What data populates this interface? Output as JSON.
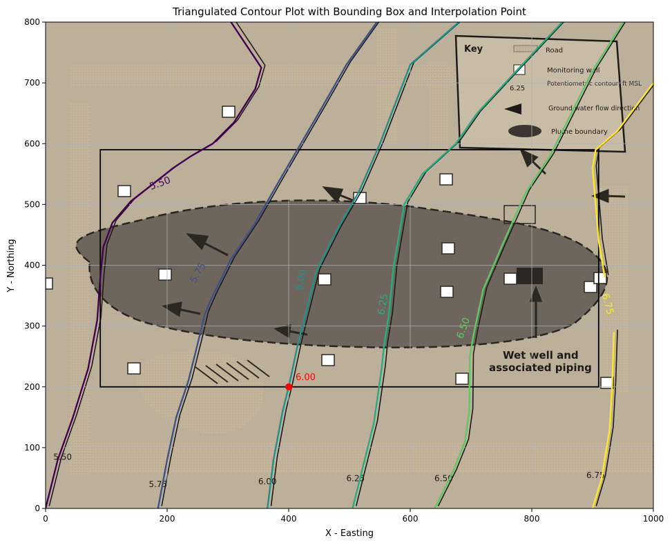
{
  "chart_data": {
    "type": "line",
    "title": "Triangulated Contour Plot with Bounding Box and Interpolation Point",
    "xlabel": "X - Easting",
    "ylabel": "Y - Northing",
    "xlim": [
      0,
      1000
    ],
    "ylim": [
      0,
      800
    ],
    "xticks": [
      0,
      200,
      400,
      600,
      800,
      1000
    ],
    "yticks": [
      0,
      100,
      200,
      300,
      400,
      500,
      600,
      700,
      800
    ],
    "grid": true,
    "bounding_box": {
      "x": [
        90,
        910
      ],
      "y": [
        200,
        590
      ]
    },
    "interpolation_point": {
      "x": 400,
      "y": 200,
      "label": "6.00",
      "color": "#ff0000"
    },
    "contours": [
      {
        "level": "5.50",
        "color": "#440154",
        "points": [
          [
            0,
            0
          ],
          [
            20,
            80
          ],
          [
            45,
            150
          ],
          [
            70,
            230
          ],
          [
            85,
            310
          ],
          [
            90,
            380
          ],
          [
            95,
            430
          ],
          [
            110,
            470
          ],
          [
            140,
            505
          ],
          [
            210,
            560
          ],
          [
            240,
            580
          ],
          [
            275,
            600
          ],
          [
            310,
            635
          ],
          [
            345,
            690
          ],
          [
            355,
            725
          ],
          [
            305,
            800
          ]
        ],
        "inline_label": {
          "x": 190,
          "y": 530,
          "rotation": -20
        }
      },
      {
        "level": "5.75",
        "color": "#3b528b",
        "points": [
          [
            185,
            0
          ],
          [
            200,
            80
          ],
          [
            215,
            150
          ],
          [
            235,
            210
          ],
          [
            250,
            270
          ],
          [
            262,
            320
          ],
          [
            275,
            350
          ],
          [
            305,
            410
          ],
          [
            345,
            470
          ],
          [
            385,
            540
          ],
          [
            420,
            600
          ],
          [
            455,
            660
          ],
          [
            495,
            730
          ],
          [
            545,
            800
          ]
        ],
        "inline_label": {
          "x": 255,
          "y": 385,
          "rotation": -60
        }
      },
      {
        "level": "6.00",
        "color": "#21908c",
        "points": [
          [
            365,
            0
          ],
          [
            375,
            80
          ],
          [
            390,
            160
          ],
          [
            400,
            200
          ],
          [
            415,
            270
          ],
          [
            430,
            330
          ],
          [
            445,
            390
          ],
          [
            480,
            460
          ],
          [
            515,
            520
          ],
          [
            550,
            600
          ],
          [
            600,
            730
          ],
          [
            680,
            800
          ]
        ],
        "inline_label": {
          "x": 425,
          "y": 375,
          "rotation": -75
        }
      },
      {
        "level": "6.25",
        "color": "#27ad81",
        "points": [
          [
            505,
            0
          ],
          [
            520,
            60
          ],
          [
            540,
            140
          ],
          [
            553,
            230
          ],
          [
            557,
            270
          ],
          [
            565,
            320
          ],
          [
            572,
            395
          ],
          [
            590,
            500
          ],
          [
            620,
            550
          ],
          [
            675,
            600
          ],
          [
            710,
            650
          ],
          [
            775,
            720
          ],
          [
            850,
            800
          ]
        ],
        "inline_label": {
          "x": 560,
          "y": 335,
          "rotation": -80
        }
      },
      {
        "level": "6.50",
        "color": "#5ec962",
        "points": [
          [
            640,
            0
          ],
          [
            670,
            60
          ],
          [
            690,
            110
          ],
          [
            697,
            160
          ],
          [
            698,
            250
          ],
          [
            705,
            290
          ],
          [
            720,
            360
          ],
          [
            750,
            430
          ],
          [
            790,
            520
          ],
          [
            830,
            580
          ],
          [
            860,
            640
          ],
          [
            900,
            720
          ],
          [
            950,
            800
          ]
        ],
        "inline_label": {
          "x": 692,
          "y": 295,
          "rotation": -70
        }
      },
      {
        "level": "6.75",
        "color": "#fde725",
        "points": [
          [
            900,
            0
          ],
          [
            915,
            50
          ],
          [
            928,
            130
          ],
          [
            932,
            200
          ],
          [
            935,
            290
          ]
        ],
        "points2": [
          [
            920,
            380
          ],
          [
            910,
            440
          ],
          [
            905,
            500
          ],
          [
            900,
            560
          ],
          [
            905,
            590
          ],
          [
            940,
            620
          ],
          [
            985,
            680
          ],
          [
            1000,
            700
          ]
        ],
        "inline_label": {
          "x": 920,
          "y": 335,
          "rotation": 75
        }
      }
    ],
    "background_image_text": {
      "key_title": "Key",
      "key_items": [
        "Road",
        "Monitoring well",
        "Potentiometric contour, ft MSL",
        "Ground water flow direction",
        "Plume boundary"
      ],
      "key_sample": "6.25",
      "wet_well_label_1": "Wet well and",
      "wet_well_label_2": "associated piping",
      "bottom_labels": [
        "5.50",
        "5.75",
        "6.00",
        "6.25",
        "6.50",
        "6.75"
      ]
    }
  }
}
